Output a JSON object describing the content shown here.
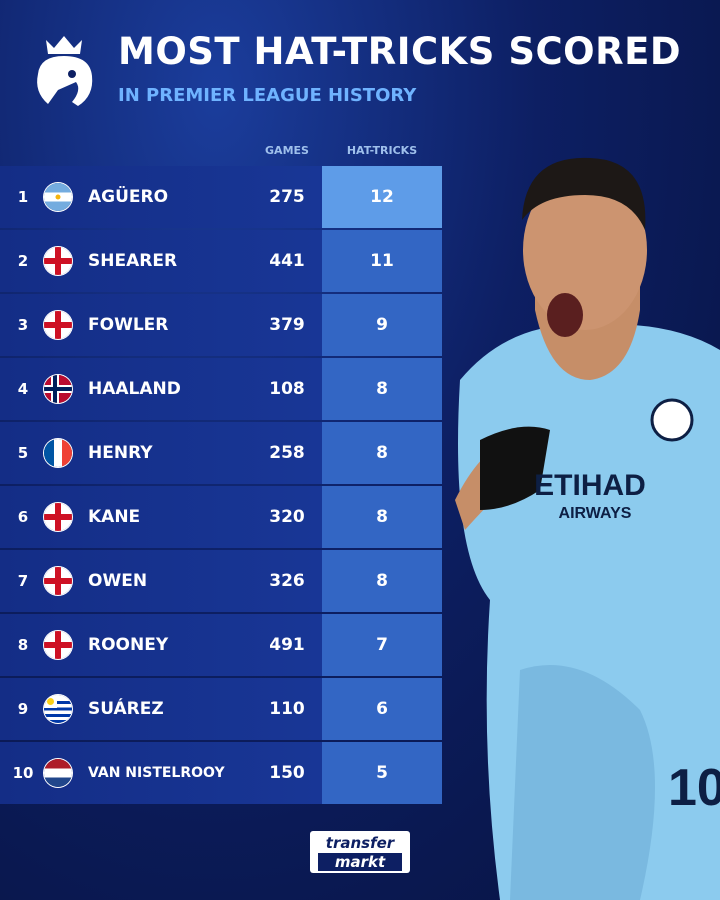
{
  "header": {
    "title": "MOST HAT-TRICKS SCORED",
    "subtitle": "IN PREMIER LEAGUE HISTORY"
  },
  "table": {
    "columns": [
      "GAMES",
      "HAT-TRICKS"
    ],
    "rows": [
      [
        "1",
        "AGÜERO",
        "275",
        "12"
      ],
      [
        "2",
        "SHEARER",
        "441",
        "11"
      ],
      [
        "3",
        "FOWLER",
        "379",
        "9"
      ],
      [
        "4",
        "HAALAND",
        "108",
        "8"
      ],
      [
        "5",
        "HENRY",
        "258",
        "8"
      ],
      [
        "6",
        "KANE",
        "320",
        "8"
      ],
      [
        "7",
        "OWEN",
        "326",
        "8"
      ],
      [
        "8",
        "ROONEY",
        "491",
        "7"
      ],
      [
        "9",
        "SUÁREZ",
        "110",
        "6"
      ],
      [
        "10",
        "VAN NISTELROOY",
        "150",
        "5"
      ]
    ]
  },
  "footer": {
    "logo_top": "transfer",
    "logo_bottom": "markt"
  }
}
